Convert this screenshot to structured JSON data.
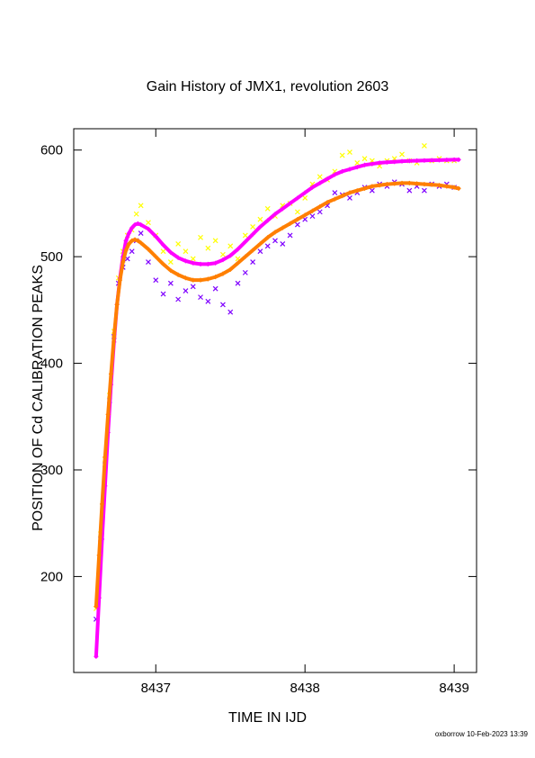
{
  "chart_data": {
    "type": "scatter",
    "title": "Gain History of JMX1, revolution 2603",
    "xlabel": "TIME IN IJD",
    "ylabel": "POSITION OF Cd CALIBRATION PEAKS",
    "xlim": [
      8436.45,
      8439.15
    ],
    "ylim": [
      110,
      620
    ],
    "x_ticks": [
      8437,
      8438,
      8439
    ],
    "y_ticks": [
      200,
      300,
      400,
      500,
      600
    ],
    "grid": false,
    "legend": "none",
    "colors": {
      "yellow": "#ffff00",
      "purple": "#7f00ff",
      "magenta": "#ff00ff",
      "orange": "#ff7f00"
    },
    "series": [
      {
        "marker": "x",
        "color": "#ffff00",
        "x": [
          8436.6,
          8436.63,
          8436.66,
          8436.69,
          8436.72,
          8436.75,
          8436.78,
          8436.81,
          8436.84,
          8436.87,
          8436.9,
          8436.95,
          8437.0,
          8437.05,
          8437.1,
          8437.15,
          8437.2,
          8437.25,
          8437.3,
          8437.35,
          8437.4,
          8437.45,
          8437.5,
          8437.55,
          8437.6,
          8437.65,
          8437.7,
          8437.75,
          8437.8,
          8437.85,
          8437.9,
          8437.95,
          8438.0,
          8438.05,
          8438.1,
          8438.15,
          8438.2,
          8438.25,
          8438.3,
          8438.35,
          8438.4,
          8438.45,
          8438.5,
          8438.55,
          8438.6,
          8438.65,
          8438.7,
          8438.75,
          8438.8,
          8438.85,
          8438.9,
          8438.95,
          8439.0
        ],
        "y": [
          170,
          240,
          310,
          370,
          430,
          480,
          505,
          520,
          525,
          540,
          548,
          532,
          520,
          505,
          495,
          512,
          505,
          498,
          518,
          508,
          515,
          502,
          510,
          498,
          520,
          528,
          535,
          545,
          538,
          548,
          550,
          542,
          555,
          568,
          575,
          572,
          580,
          595,
          598,
          588,
          592,
          590,
          585,
          590,
          592,
          596,
          590,
          588,
          604,
          590,
          592,
          590,
          590
        ]
      },
      {
        "marker": "x",
        "color": "#7f00ff",
        "x": [
          8436.6,
          8436.63,
          8436.66,
          8436.69,
          8436.72,
          8436.75,
          8436.78,
          8436.81,
          8436.84,
          8436.87,
          8436.9,
          8436.95,
          8437.0,
          8437.05,
          8437.1,
          8437.15,
          8437.2,
          8437.25,
          8437.3,
          8437.35,
          8437.4,
          8437.45,
          8437.5,
          8437.55,
          8437.6,
          8437.65,
          8437.7,
          8437.75,
          8437.8,
          8437.85,
          8437.9,
          8437.95,
          8438.0,
          8438.05,
          8438.1,
          8438.15,
          8438.2,
          8438.25,
          8438.3,
          8438.35,
          8438.4,
          8438.45,
          8438.5,
          8438.55,
          8438.6,
          8438.65,
          8438.7,
          8438.75,
          8438.8,
          8438.85,
          8438.9,
          8438.95,
          8439.0
        ],
        "y": [
          160,
          235,
          305,
          365,
          425,
          475,
          490,
          498,
          505,
          515,
          522,
          495,
          478,
          465,
          475,
          460,
          468,
          472,
          462,
          458,
          470,
          455,
          448,
          475,
          485,
          495,
          505,
          510,
          515,
          512,
          520,
          530,
          535,
          538,
          542,
          548,
          560,
          558,
          555,
          560,
          565,
          562,
          568,
          566,
          570,
          568,
          562,
          566,
          562,
          568,
          566,
          568,
          565
        ]
      },
      {
        "marker": "+",
        "color": "#ff00ff",
        "x": [
          8436.6,
          8436.62,
          8436.64,
          8436.66,
          8436.68,
          8436.7,
          8436.72,
          8436.74,
          8436.76,
          8436.78,
          8436.8,
          8436.82,
          8436.84,
          8436.86,
          8436.88,
          8436.9,
          8436.95,
          8437.0,
          8437.05,
          8437.1,
          8437.15,
          8437.2,
          8437.25,
          8437.3,
          8437.35,
          8437.4,
          8437.45,
          8437.5,
          8437.55,
          8437.6,
          8437.65,
          8437.7,
          8437.75,
          8437.8,
          8437.85,
          8437.9,
          8437.95,
          8438.0,
          8438.05,
          8438.1,
          8438.15,
          8438.2,
          8438.25,
          8438.3,
          8438.35,
          8438.4,
          8438.45,
          8438.5,
          8438.55,
          8438.6,
          8438.65,
          8438.7,
          8438.75,
          8438.8,
          8438.85,
          8438.9,
          8438.95,
          8439.0,
          8439.03
        ],
        "y": [
          125,
          180,
          235,
          285,
          335,
          380,
          420,
          455,
          480,
          500,
          515,
          522,
          527,
          530,
          531,
          530,
          526,
          519,
          511,
          504,
          499,
          496,
          494,
          493,
          493,
          494,
          497,
          501,
          507,
          514,
          521,
          528,
          534,
          540,
          545,
          550,
          555,
          560,
          565,
          569,
          573,
          577,
          580,
          582,
          584,
          586,
          587,
          588,
          588.5,
          589,
          589.5,
          589.8,
          590,
          590.2,
          590.4,
          590.6,
          590.8,
          591,
          591
        ]
      },
      {
        "marker": "+",
        "color": "#ff7f00",
        "x": [
          8436.6,
          8436.62,
          8436.64,
          8436.66,
          8436.68,
          8436.7,
          8436.72,
          8436.74,
          8436.76,
          8436.78,
          8436.8,
          8436.82,
          8436.84,
          8436.86,
          8436.88,
          8436.9,
          8436.95,
          8437.0,
          8437.05,
          8437.1,
          8437.15,
          8437.2,
          8437.25,
          8437.3,
          8437.35,
          8437.4,
          8437.45,
          8437.5,
          8437.55,
          8437.6,
          8437.65,
          8437.7,
          8437.75,
          8437.8,
          8437.85,
          8437.9,
          8437.95,
          8438.0,
          8438.05,
          8438.1,
          8438.15,
          8438.2,
          8438.25,
          8438.3,
          8438.35,
          8438.4,
          8438.45,
          8438.5,
          8438.55,
          8438.6,
          8438.65,
          8438.7,
          8438.75,
          8438.8,
          8438.85,
          8438.9,
          8438.95,
          8439.0,
          8439.03
        ],
        "y": [
          172,
          220,
          268,
          312,
          352,
          390,
          425,
          455,
          478,
          495,
          506,
          512,
          515,
          516,
          515,
          513,
          507,
          500,
          493,
          487,
          483,
          480,
          478,
          478,
          479,
          481,
          484,
          488,
          494,
          500,
          506,
          512,
          518,
          523,
          527,
          531,
          535,
          539,
          543,
          547,
          551,
          554,
          557,
          560,
          562,
          564,
          566,
          567,
          568,
          568.5,
          569,
          569,
          568.5,
          568,
          567.5,
          567,
          566,
          565,
          564
        ]
      }
    ]
  },
  "footer": "oxborrow 10-Feb-2023 13:39"
}
